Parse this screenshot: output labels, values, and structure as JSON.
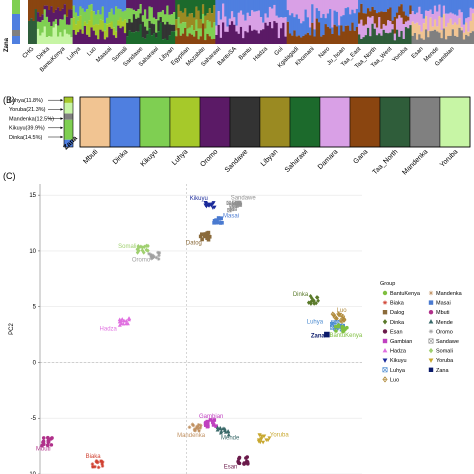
{
  "palette": {
    "Mbuti": "#f1c492",
    "Dinka": "#4f7fe0",
    "Kikuyu": "#7fcf52",
    "Luhya": "#a6c92a",
    "Oromo": "#5b1a66",
    "Sandawe": "#333333",
    "Libyan": "#9a8a22",
    "Saharawi": "#1c6a2c",
    "Damara": "#d9a0e6",
    "Gana": "#8a4510",
    "Taa_North": "#2f5d3a",
    "Mandenka": "#808080",
    "Yoruba": "#c7f5a5"
  },
  "panel_a": {
    "zana_label": "Zana",
    "populations": [
      "CHG",
      "Dinka",
      "BantuKenya",
      "Luhya",
      "Luo",
      "Maasai",
      "Somali",
      "Sandawe",
      "Saharawi",
      "Libyan",
      "Egyptian",
      "Mozabite",
      "Saharawi",
      "BantuSA",
      "Bantu",
      "Hadza",
      "Gui",
      "Kgalagadi",
      "Khomani",
      "Naro",
      "Ju_hoan",
      "Taa_East",
      "Taa_North",
      "Taa_West",
      "Yoruba",
      "Esan",
      "Mende",
      "Gambian"
    ]
  },
  "panel_b": {
    "label": "(B)",
    "zana_label": "Zana",
    "components": [
      {
        "label": "Luhya(11.8%)",
        "key": "Luhya",
        "value": 11.8
      },
      {
        "label": "Yoruba(21.3%)",
        "key": "Yoruba",
        "value": 21.3
      },
      {
        "label": "Mandenka(12.5%)",
        "key": "Mandenka",
        "value": 12.5
      },
      {
        "label": "Kikuyu(39.9%)",
        "key": "Kikuyu",
        "value": 39.9
      },
      {
        "label": "Dinka(14.5%)",
        "key": "Dinka",
        "value": 14.5
      }
    ],
    "bar_labels": [
      "Mbuti",
      "Dinka",
      "Kikuyu",
      "Luhya",
      "Oromo",
      "Sandawe",
      "Libyan",
      "Saharawi",
      "Damara",
      "Gana",
      "Taa_North",
      "Mandenka",
      "Yoruba"
    ]
  },
  "chart_data": {
    "type": "scatter",
    "panel_label": "(C)",
    "ylabel": "PC2",
    "xlabel": "",
    "ylim": [
      -10,
      16
    ],
    "yticks": [
      15,
      10,
      5,
      0,
      -5,
      -10
    ],
    "xlim": [
      -10,
      12
    ],
    "legend_title": "Group",
    "legend_position": "right",
    "legend": [
      {
        "name": "BantuKenya",
        "color": "#7fbf3f",
        "marker": "circle"
      },
      {
        "name": "Biaka",
        "color": "#d04030",
        "marker": "asterisk"
      },
      {
        "name": "Dalog",
        "color": "#8a6a3a",
        "marker": "square"
      },
      {
        "name": "Dinka",
        "color": "#5a7a2a",
        "marker": "diamond"
      },
      {
        "name": "Esan",
        "color": "#6a1a4a",
        "marker": "circle"
      },
      {
        "name": "Gambian",
        "color": "#c040c0",
        "marker": "square"
      },
      {
        "name": "Hadza",
        "color": "#e070e0",
        "marker": "triangle"
      },
      {
        "name": "Kikuyu",
        "color": "#1a2a9a",
        "marker": "triangle-down"
      },
      {
        "name": "Luhya",
        "color": "#4a8ad0",
        "marker": "boxcross"
      },
      {
        "name": "Luo",
        "color": "#b08a3a",
        "marker": "diamondplus"
      },
      {
        "name": "Mandenka",
        "color": "#c09060",
        "marker": "asterisk"
      },
      {
        "name": "Masai",
        "color": "#4a7ad0",
        "marker": "square"
      },
      {
        "name": "Mbuti",
        "color": "#b0308a",
        "marker": "circle"
      },
      {
        "name": "Mende",
        "color": "#3a6a6a",
        "marker": "triangle"
      },
      {
        "name": "Oromo",
        "color": "#a0a0a0",
        "marker": "asterisk"
      },
      {
        "name": "Sandawe",
        "color": "#909090",
        "marker": "boxcross"
      },
      {
        "name": "Somali",
        "color": "#a0d070",
        "marker": "diamond"
      },
      {
        "name": "Yoruba",
        "color": "#c8a830",
        "marker": "triangle-down"
      },
      {
        "name": "Zana",
        "color": "#0a1a6a",
        "marker": "square"
      }
    ],
    "clusters": [
      {
        "name": "Sandawe",
        "x": 3.3,
        "y": 14.0,
        "color": "#909090",
        "marker": "boxcross",
        "label": "Sandawe"
      },
      {
        "name": "Kikuyu",
        "x": 1.6,
        "y": 14.1,
        "color": "#1a2a9a",
        "marker": "triangle-down",
        "label": "Kikuyu"
      },
      {
        "name": "Masai",
        "x": 2.3,
        "y": 12.8,
        "color": "#4a7ad0",
        "marker": "square",
        "label": "Masai"
      },
      {
        "name": "Dalog",
        "x": 1.2,
        "y": 11.3,
        "color": "#8a6a3a",
        "marker": "square",
        "label": "Datog"
      },
      {
        "name": "Somali",
        "x": -3.0,
        "y": 10.1,
        "color": "#a0d070",
        "marker": "diamond",
        "label": "Somali"
      },
      {
        "name": "Oromo",
        "x": -2.2,
        "y": 9.6,
        "color": "#a0a0a0",
        "marker": "asterisk",
        "label": "Oromo"
      },
      {
        "name": "Hadza",
        "x": -4.2,
        "y": 3.6,
        "color": "#e070e0",
        "marker": "triangle",
        "label": "Hadza"
      },
      {
        "name": "Dinka",
        "x": 8.6,
        "y": 5.6,
        "color": "#5a7a2a",
        "marker": "diamond",
        "label": "Dinka"
      },
      {
        "name": "Luo",
        "x": 10.4,
        "y": 4.0,
        "color": "#b08a3a",
        "marker": "diamondplus",
        "label": "Luo"
      },
      {
        "name": "Luhya",
        "x": 10.3,
        "y": 3.3,
        "color": "#4a8ad0",
        "marker": "boxcross",
        "label": "Luhya"
      },
      {
        "name": "BantuKenya",
        "x": 10.6,
        "y": 3.1,
        "color": "#7fbf3f",
        "marker": "circle",
        "label": "BantuKenya"
      },
      {
        "name": "Zana",
        "x": 9.6,
        "y": 2.5,
        "color": "#0a1a6a",
        "marker": "square",
        "label": "Zana"
      },
      {
        "name": "Gambian",
        "x": 1.7,
        "y": -5.5,
        "color": "#c040c0",
        "marker": "square",
        "label": "Gambian"
      },
      {
        "name": "Mandenka",
        "x": 0.6,
        "y": -5.8,
        "color": "#c09060",
        "marker": "asterisk",
        "label": "Mandenka"
      },
      {
        "name": "Mende",
        "x": 2.5,
        "y": -6.2,
        "color": "#3a6a6a",
        "marker": "triangle",
        "label": "Mende"
      },
      {
        "name": "Yoruba",
        "x": 5.3,
        "y": -6.8,
        "color": "#c8a830",
        "marker": "triangle-down",
        "label": "Yoruba"
      },
      {
        "name": "Esan",
        "x": 3.9,
        "y": -8.8,
        "color": "#6a1a4a",
        "marker": "circle",
        "label": "Esan"
      },
      {
        "name": "Mbuti",
        "x": -9.5,
        "y": -7.1,
        "color": "#b0308a",
        "marker": "circle",
        "label": "Mbuti"
      },
      {
        "name": "Biaka",
        "x": -6.1,
        "y": -9.1,
        "color": "#d04030",
        "marker": "asterisk",
        "label": "Biaka"
      }
    ]
  }
}
